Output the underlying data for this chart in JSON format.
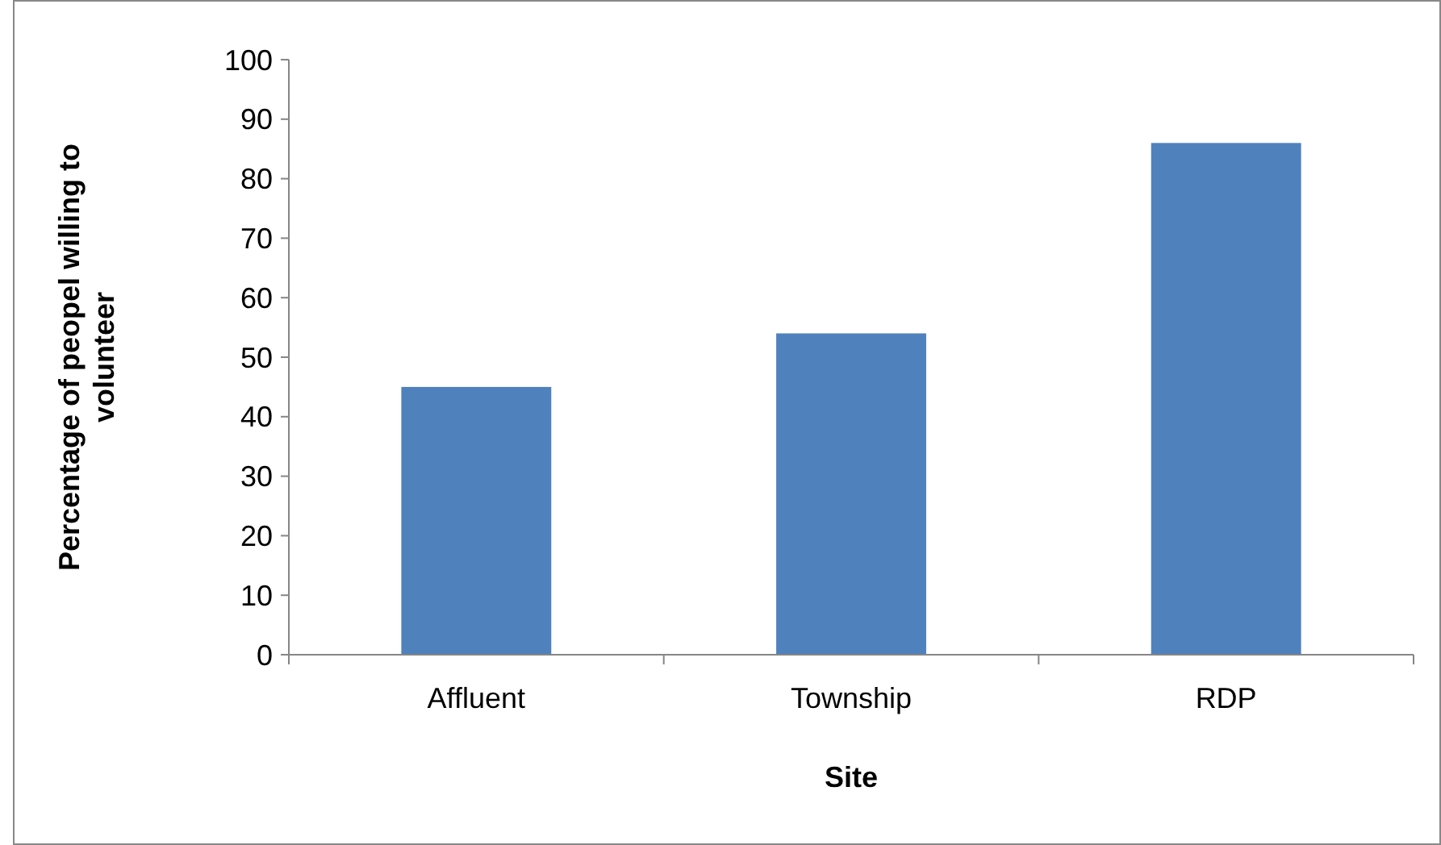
{
  "chart_data": {
    "type": "bar",
    "xlabel": "Site",
    "ylabel": "Percentage of peopel willing to volunteer",
    "categories": [
      "Affluent",
      "Township",
      "RDP"
    ],
    "values": [
      45,
      54,
      86
    ],
    "color": "#4f81bd",
    "ylim": [
      0,
      100
    ],
    "yticks": [
      0,
      10,
      20,
      30,
      40,
      50,
      60,
      70,
      80,
      90,
      100
    ],
    "grid": false
  }
}
